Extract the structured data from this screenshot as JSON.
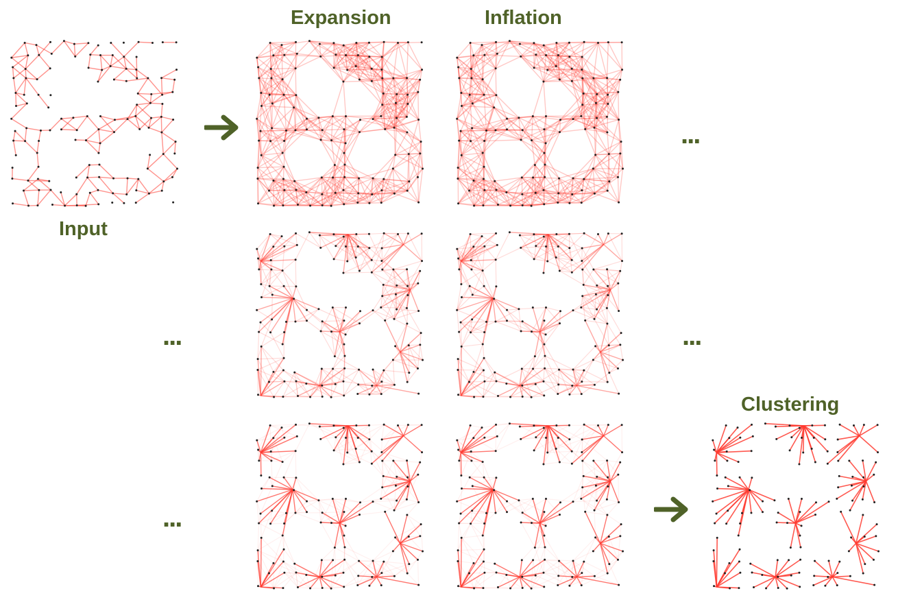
{
  "labels": {
    "input": "Input",
    "expansion": "Expansion",
    "inflation": "Inflation",
    "clustering": "Clustering"
  },
  "ellipsis": "...",
  "colors": {
    "label_green": "#4f6228",
    "edge_red": "#ff3b30",
    "node_dark": "#222222",
    "background": "#ffffff"
  },
  "icons": {
    "arrow": "arrow-right-icon",
    "ellipsis": "ellipsis-icon"
  }
}
